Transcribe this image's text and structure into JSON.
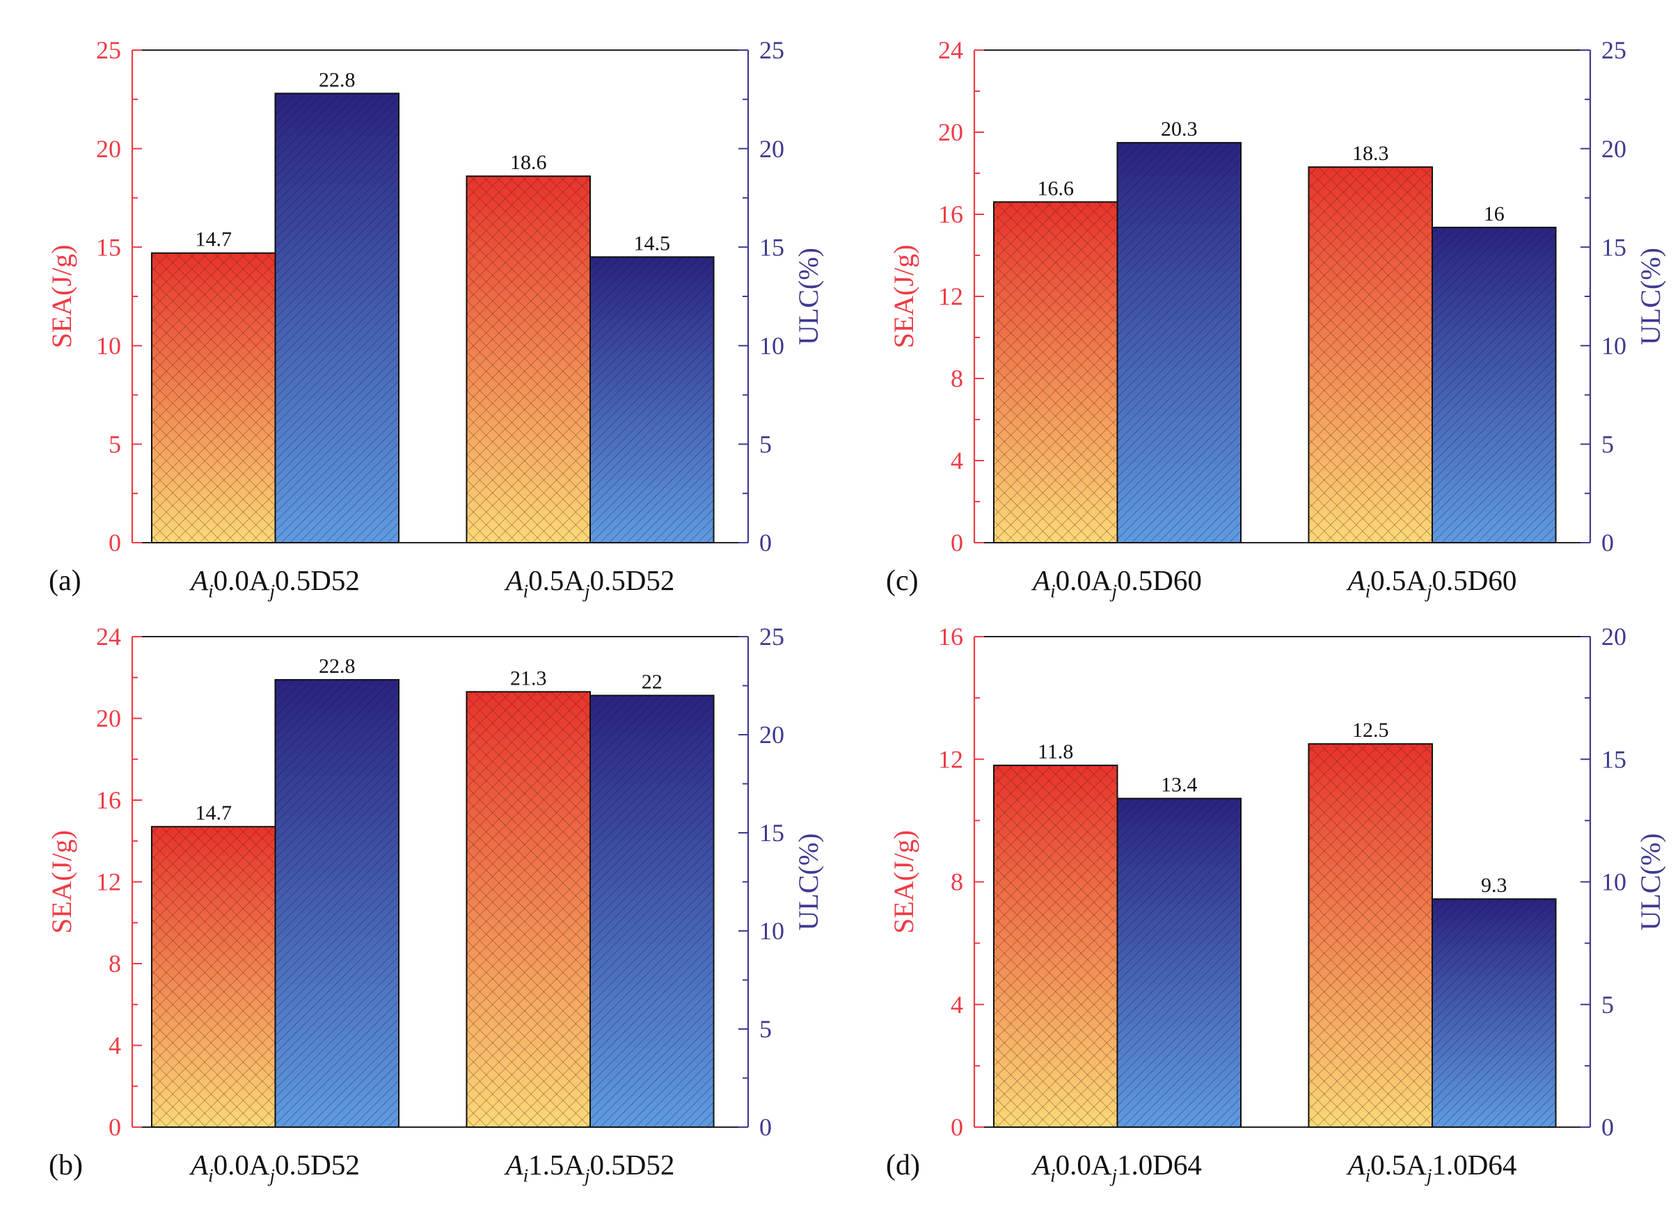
{
  "colors": {
    "sea_axis": "#ee3b45",
    "ulc_axis": "#3d3a8f",
    "sea_top": "#e8332c",
    "sea_bottom": "#fbd978",
    "ulc_top": "#2a2380",
    "ulc_bottom": "#5f9be0",
    "axis_line": "#222222"
  },
  "chart_data": [
    {
      "type": "bar",
      "panel_label": "(a)",
      "categories": [
        {
          "base": "A",
          "i_sub": "i",
          "mid1": "0.0A",
          "j_sub": "j",
          "tail": "0.5D52"
        },
        {
          "base": "A",
          "i_sub": "i",
          "mid1": "0.5A",
          "j_sub": "j",
          "tail": "0.5D52"
        }
      ],
      "series": [
        {
          "name": "SEA",
          "axis": "left",
          "values": [
            14.7,
            18.6
          ],
          "labels": [
            "14.7",
            "18.6"
          ]
        },
        {
          "name": "ULC",
          "axis": "right",
          "values": [
            22.8,
            14.5
          ],
          "labels": [
            "22.8",
            "14.5"
          ]
        }
      ],
      "ylabel_left": "SEA(J/g)",
      "ylabel_right": "ULC(%)",
      "ylim_left": [
        0,
        25
      ],
      "yticks_left": [
        "0",
        "5",
        "10",
        "15",
        "20",
        "25"
      ],
      "ylim_right": [
        0,
        25
      ],
      "yticks_right": [
        "0",
        "5",
        "10",
        "15",
        "20",
        "25"
      ]
    },
    {
      "type": "bar",
      "panel_label": "(b)",
      "categories": [
        {
          "base": "A",
          "i_sub": "i",
          "mid1": "0.0A",
          "j_sub": "j",
          "tail": "0.5D52"
        },
        {
          "base": "A",
          "i_sub": "i",
          "mid1": "1.5A",
          "j_sub": "j",
          "tail": "0.5D52"
        }
      ],
      "series": [
        {
          "name": "SEA",
          "axis": "left",
          "values": [
            14.7,
            21.3
          ],
          "labels": [
            "14.7",
            "21.3"
          ]
        },
        {
          "name": "ULC",
          "axis": "right",
          "values": [
            22.8,
            22
          ],
          "labels": [
            "22.8",
            "22"
          ]
        }
      ],
      "ylabel_left": "SEA(J/g)",
      "ylabel_right": "ULC(%)",
      "ylim_left": [
        0,
        24
      ],
      "yticks_left": [
        "0",
        "4",
        "8",
        "12",
        "16",
        "20",
        "24"
      ],
      "ylim_right": [
        0,
        25
      ],
      "yticks_right": [
        "0",
        "5",
        "10",
        "15",
        "20",
        "25"
      ]
    },
    {
      "type": "bar",
      "panel_label": "(c)",
      "categories": [
        {
          "base": "A",
          "i_sub": "i",
          "mid1": "0.0A",
          "j_sub": "j",
          "tail": "0.5D60"
        },
        {
          "base": "A",
          "i_sub": "i",
          "mid1": "0.5A",
          "j_sub": "j",
          "tail": "0.5D60"
        }
      ],
      "series": [
        {
          "name": "SEA",
          "axis": "left",
          "values": [
            16.6,
            18.3
          ],
          "labels": [
            "16.6",
            "18.3"
          ]
        },
        {
          "name": "ULC",
          "axis": "right",
          "values": [
            20.3,
            16
          ],
          "labels": [
            "20.3",
            "16"
          ]
        }
      ],
      "ylabel_left": "SEA(J/g)",
      "ylabel_right": "ULC(%)",
      "ylim_left": [
        0,
        24
      ],
      "yticks_left": [
        "0",
        "4",
        "8",
        "12",
        "16",
        "20",
        "24"
      ],
      "ylim_right": [
        0,
        25
      ],
      "yticks_right": [
        "0",
        "5",
        "10",
        "15",
        "20",
        "25"
      ]
    },
    {
      "type": "bar",
      "panel_label": "(d)",
      "categories": [
        {
          "base": "A",
          "i_sub": "i",
          "mid1": "0.0A",
          "j_sub": "j",
          "tail": "1.0D64"
        },
        {
          "base": "A",
          "i_sub": "i",
          "mid1": "0.5A",
          "j_sub": "j",
          "tail": "1.0D64"
        }
      ],
      "series": [
        {
          "name": "SEA",
          "axis": "left",
          "values": [
            11.8,
            12.5
          ],
          "labels": [
            "11.8",
            "12.5"
          ]
        },
        {
          "name": "ULC",
          "axis": "right",
          "values": [
            13.4,
            9.3
          ],
          "labels": [
            "13.4",
            "9.3"
          ]
        }
      ],
      "ylabel_left": "SEA(J/g)",
      "ylabel_right": "ULC(%)",
      "ylim_left": [
        0,
        16
      ],
      "yticks_left": [
        "0",
        "4",
        "8",
        "12",
        "16"
      ],
      "ylim_right": [
        0,
        20
      ],
      "yticks_right": [
        "0",
        "5",
        "10",
        "15",
        "20"
      ]
    }
  ]
}
